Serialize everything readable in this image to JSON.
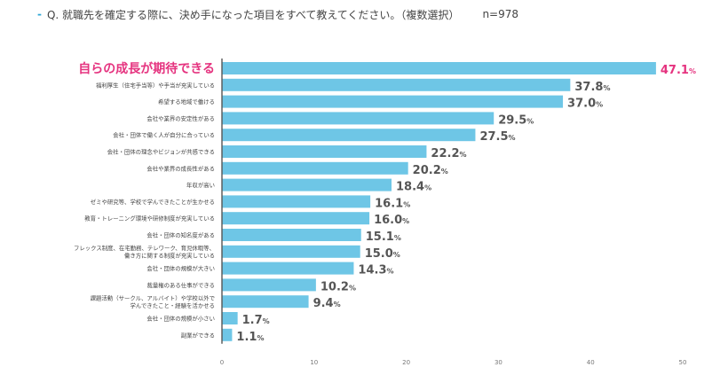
{
  "question": {
    "marker": "-",
    "text": "Q. 就職先を確定する際に、決め手になった項目をすべて教えてください。（複数選択）",
    "n": "n=978"
  },
  "colors": {
    "bar": "#6ec6e6",
    "highlight_label": "#e5337f",
    "value_text": "#555555",
    "axis": "#555555",
    "accent_dash": "#2ea7d6"
  },
  "chart_data": {
    "type": "bar",
    "orientation": "horizontal",
    "title": "",
    "xlabel": "",
    "ylabel": "",
    "xlim": [
      0,
      50
    ],
    "xticks": [
      0,
      10,
      20,
      30,
      40,
      50
    ],
    "grid": false,
    "legend": "none",
    "value_suffix": "%",
    "highlight_index": 0,
    "categories": [
      "自らの成長が期待できる",
      "福利厚生（住宅手当等）や手当が充実している",
      "希望する地域で働ける",
      "会社や業界の安定性がある",
      "会社・団体で働く人が自分に合っている",
      "会社・団体の理念やビジョンが共感できる",
      "会社や業界の成長性がある",
      "年収が高い",
      "ゼミや研究等、学校で学んできたことが生かせる",
      "教育・トレーニング環境や研修制度が充実している",
      "会社・団体の知名度がある",
      "フレックス制度、在宅勤務、テレワーク、育児休暇等、働き方に関する制度が充実している",
      "会社・団体の規模が大きい",
      "裁量権のある仕事ができる",
      "課題活動（サークル、アルバイト）や学校以外で学んできたこと・経験を活かせる",
      "会社・団体の規模が小さい",
      "副業ができる"
    ],
    "label_lines": [
      [
        "自らの成長が期待できる"
      ],
      [
        "福利厚生（住宅手当等）や手当が充実している"
      ],
      [
        "希望する地域で働ける"
      ],
      [
        "会社や業界の安定性がある"
      ],
      [
        "会社・団体で働く人が自分に合っている"
      ],
      [
        "会社・団体の理念やビジョンが共感できる"
      ],
      [
        "会社や業界の成長性がある"
      ],
      [
        "年収が高い"
      ],
      [
        "ゼミや研究等、学校で学んできたことが生かせる"
      ],
      [
        "教育・トレーニング環境や研修制度が充実している"
      ],
      [
        "会社・団体の知名度がある"
      ],
      [
        "フレックス制度、在宅勤務、テレワーク、育児休暇等、",
        "働き方に関する制度が充実している"
      ],
      [
        "会社・団体の規模が大きい"
      ],
      [
        "裁量権のある仕事ができる"
      ],
      [
        "課題活動（サークル、アルバイト）や学校以外で",
        "学んできたこと・経験を活かせる"
      ],
      [
        "会社・団体の規模が小さい"
      ],
      [
        "副業ができる"
      ]
    ],
    "values": [
      47.1,
      37.8,
      37.0,
      29.5,
      27.5,
      22.2,
      20.2,
      18.4,
      16.1,
      16.0,
      15.1,
      15.0,
      14.3,
      10.2,
      9.4,
      1.7,
      1.1
    ],
    "value_labels": [
      "47.1",
      "37.8",
      "37.0",
      "29.5",
      "27.5",
      "22.2",
      "20.2",
      "18.4",
      "16.1",
      "16.0",
      "15.1",
      "15.0",
      "14.3",
      "10.2",
      "9.4",
      "1.7",
      "1.1"
    ]
  }
}
